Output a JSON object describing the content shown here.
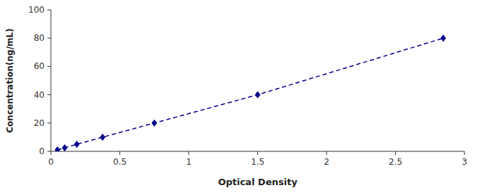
{
  "chart_data": {
    "type": "line",
    "x": [
      0.047,
      0.1,
      0.188,
      0.375,
      0.75,
      1.5,
      2.846
    ],
    "values": [
      1.0,
      2.5,
      5.0,
      10.0,
      20.0,
      40.0,
      80.0
    ],
    "color": "#00008B",
    "marker": "diamond",
    "line_style": "dashed",
    "xlabel": "Optical Density",
    "ylabel": "Concentration(ng/mL)",
    "xlim": [
      0,
      3.0
    ],
    "ylim": [
      0,
      100
    ],
    "xticks": [
      0,
      0.5,
      1,
      1.5,
      2,
      2.5,
      3
    ],
    "yticks": [
      0,
      20,
      40,
      60,
      80,
      100
    ],
    "grid": false
  }
}
